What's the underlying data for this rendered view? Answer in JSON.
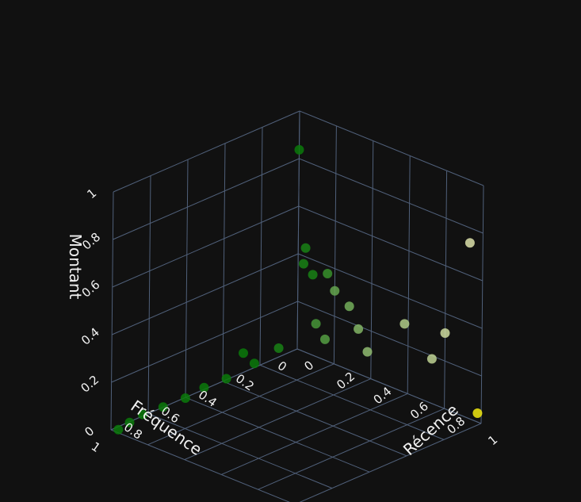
{
  "chart_data": {
    "type": "scatter3d",
    "axes": {
      "x": {
        "label": "Récence",
        "range": [
          0,
          1
        ],
        "ticks": [
          "0",
          "0.2",
          "0.4",
          "0.6",
          "0.8",
          "1"
        ]
      },
      "y": {
        "label": "Fréquence",
        "range": [
          0,
          1
        ],
        "ticks": [
          "0",
          "0.2",
          "0.4",
          "0.6",
          "0.8",
          "1"
        ]
      },
      "z": {
        "label": "Montant",
        "range": [
          0,
          1
        ],
        "ticks": [
          "0",
          "0.2",
          "0.4",
          "0.6",
          "0.8",
          "1"
        ]
      }
    },
    "grid": true,
    "colors": {
      "background": "#111111",
      "grid": "#50607a",
      "low": "#0a7a0a",
      "high": "#f2ea10"
    },
    "series": [
      {
        "points": [
          {
            "x": 0.02,
            "y": 0.02,
            "z": 0.85,
            "c": 0.0
          },
          {
            "x": 0.06,
            "y": 0.02,
            "z": 0.45,
            "c": 0.05
          },
          {
            "x": 0.1,
            "y": 0.02,
            "z": 0.35,
            "c": 0.05
          },
          {
            "x": 0.08,
            "y": 0.05,
            "z": 0.4,
            "c": 0.05
          },
          {
            "x": 0.18,
            "y": 0.02,
            "z": 0.38,
            "c": 0.15
          },
          {
            "x": 0.22,
            "y": 0.02,
            "z": 0.32,
            "c": 0.3
          },
          {
            "x": 0.3,
            "y": 0.02,
            "z": 0.28,
            "c": 0.35
          },
          {
            "x": 0.35,
            "y": 0.02,
            "z": 0.2,
            "c": 0.4
          },
          {
            "x": 0.12,
            "y": 0.02,
            "z": 0.15,
            "c": 0.2
          },
          {
            "x": 0.2,
            "y": 0.05,
            "z": 0.12,
            "c": 0.25
          },
          {
            "x": 0.4,
            "y": 0.02,
            "z": 0.12,
            "c": 0.45
          },
          {
            "x": 0.6,
            "y": 0.02,
            "z": 0.3,
            "c": 0.55
          },
          {
            "x": 0.75,
            "y": 0.02,
            "z": 0.2,
            "c": 0.6
          },
          {
            "x": 0.95,
            "y": 0.02,
            "z": 0.75,
            "c": 0.7
          },
          {
            "x": 1.0,
            "y": 0.02,
            "z": 0.05,
            "c": 1.0
          },
          {
            "x": 0.85,
            "y": 0.05,
            "z": 0.35,
            "c": 0.65
          },
          {
            "x": 0.05,
            "y": 0.15,
            "z": 0.07,
            "c": 0.05
          },
          {
            "x": 0.06,
            "y": 0.35,
            "z": 0.12,
            "c": 0.0
          },
          {
            "x": 0.05,
            "y": 0.28,
            "z": 0.05,
            "c": 0.0
          },
          {
            "x": 0.07,
            "y": 0.45,
            "z": 0.05,
            "c": 0.0
          },
          {
            "x": 0.05,
            "y": 0.55,
            "z": 0.04,
            "c": 0.0
          },
          {
            "x": 0.05,
            "y": 0.65,
            "z": 0.03,
            "c": 0.0
          },
          {
            "x": 0.03,
            "y": 0.75,
            "z": 0.02,
            "c": 0.0
          },
          {
            "x": 0.02,
            "y": 0.85,
            "z": 0.02,
            "c": 0.0
          },
          {
            "x": 0.02,
            "y": 0.92,
            "z": 0.01,
            "c": 0.0
          },
          {
            "x": 0.02,
            "y": 0.98,
            "z": 0.0,
            "c": 0.0
          }
        ]
      }
    ]
  }
}
